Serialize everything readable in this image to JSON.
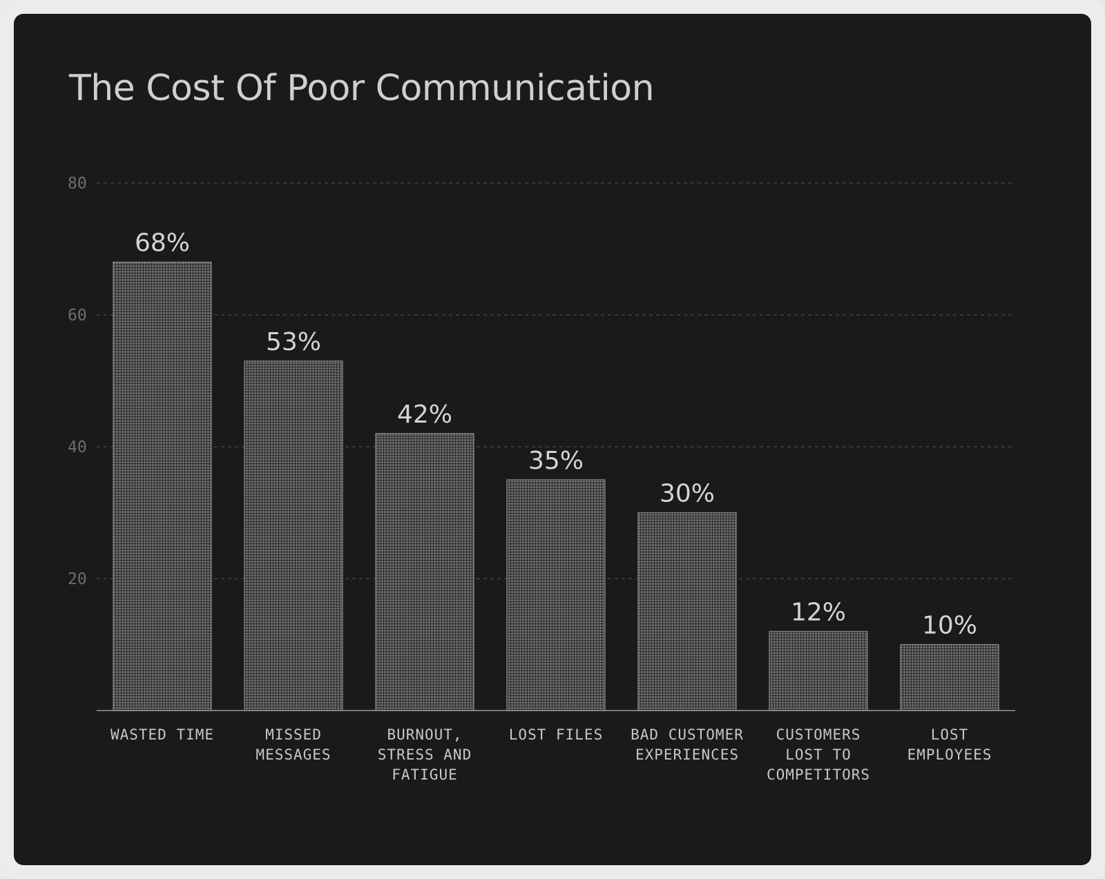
{
  "chart_data": {
    "type": "bar",
    "title": "The Cost Of Poor Communication",
    "xlabel": "",
    "ylabel": "",
    "ylim": [
      0,
      80
    ],
    "yticks": [
      20,
      40,
      60,
      80
    ],
    "grid": true,
    "categories": [
      "WASTED TIME",
      "MISSED MESSAGES",
      "BURNOUT, STRESS AND FATIGUE",
      "LOST FILES",
      "BAD CUSTOMER EXPERIENCES",
      "CUSTOMERS LOST TO COMPETITORS",
      "LOST EMPLOYEES"
    ],
    "category_lines": [
      [
        "WASTED TIME"
      ],
      [
        "MISSED",
        "MESSAGES"
      ],
      [
        "BURNOUT,",
        "STRESS AND",
        "FATIGUE"
      ],
      [
        "LOST FILES"
      ],
      [
        "BAD CUSTOMER",
        "EXPERIENCES"
      ],
      [
        "CUSTOMERS",
        "LOST TO",
        "COMPETITORS"
      ],
      [
        "LOST",
        "EMPLOYEES"
      ]
    ],
    "values": [
      68,
      53,
      42,
      35,
      30,
      12,
      10
    ],
    "value_labels": [
      "68%",
      "53%",
      "42%",
      "35%",
      "30%",
      "12%",
      "10%"
    ]
  },
  "colors": {
    "card_background": "#1a1a1a",
    "bar_fill": "#6b6b6b",
    "grid_line": "#4a4a4a",
    "title": "#cfcfcf",
    "text": "#c8c8c8"
  }
}
